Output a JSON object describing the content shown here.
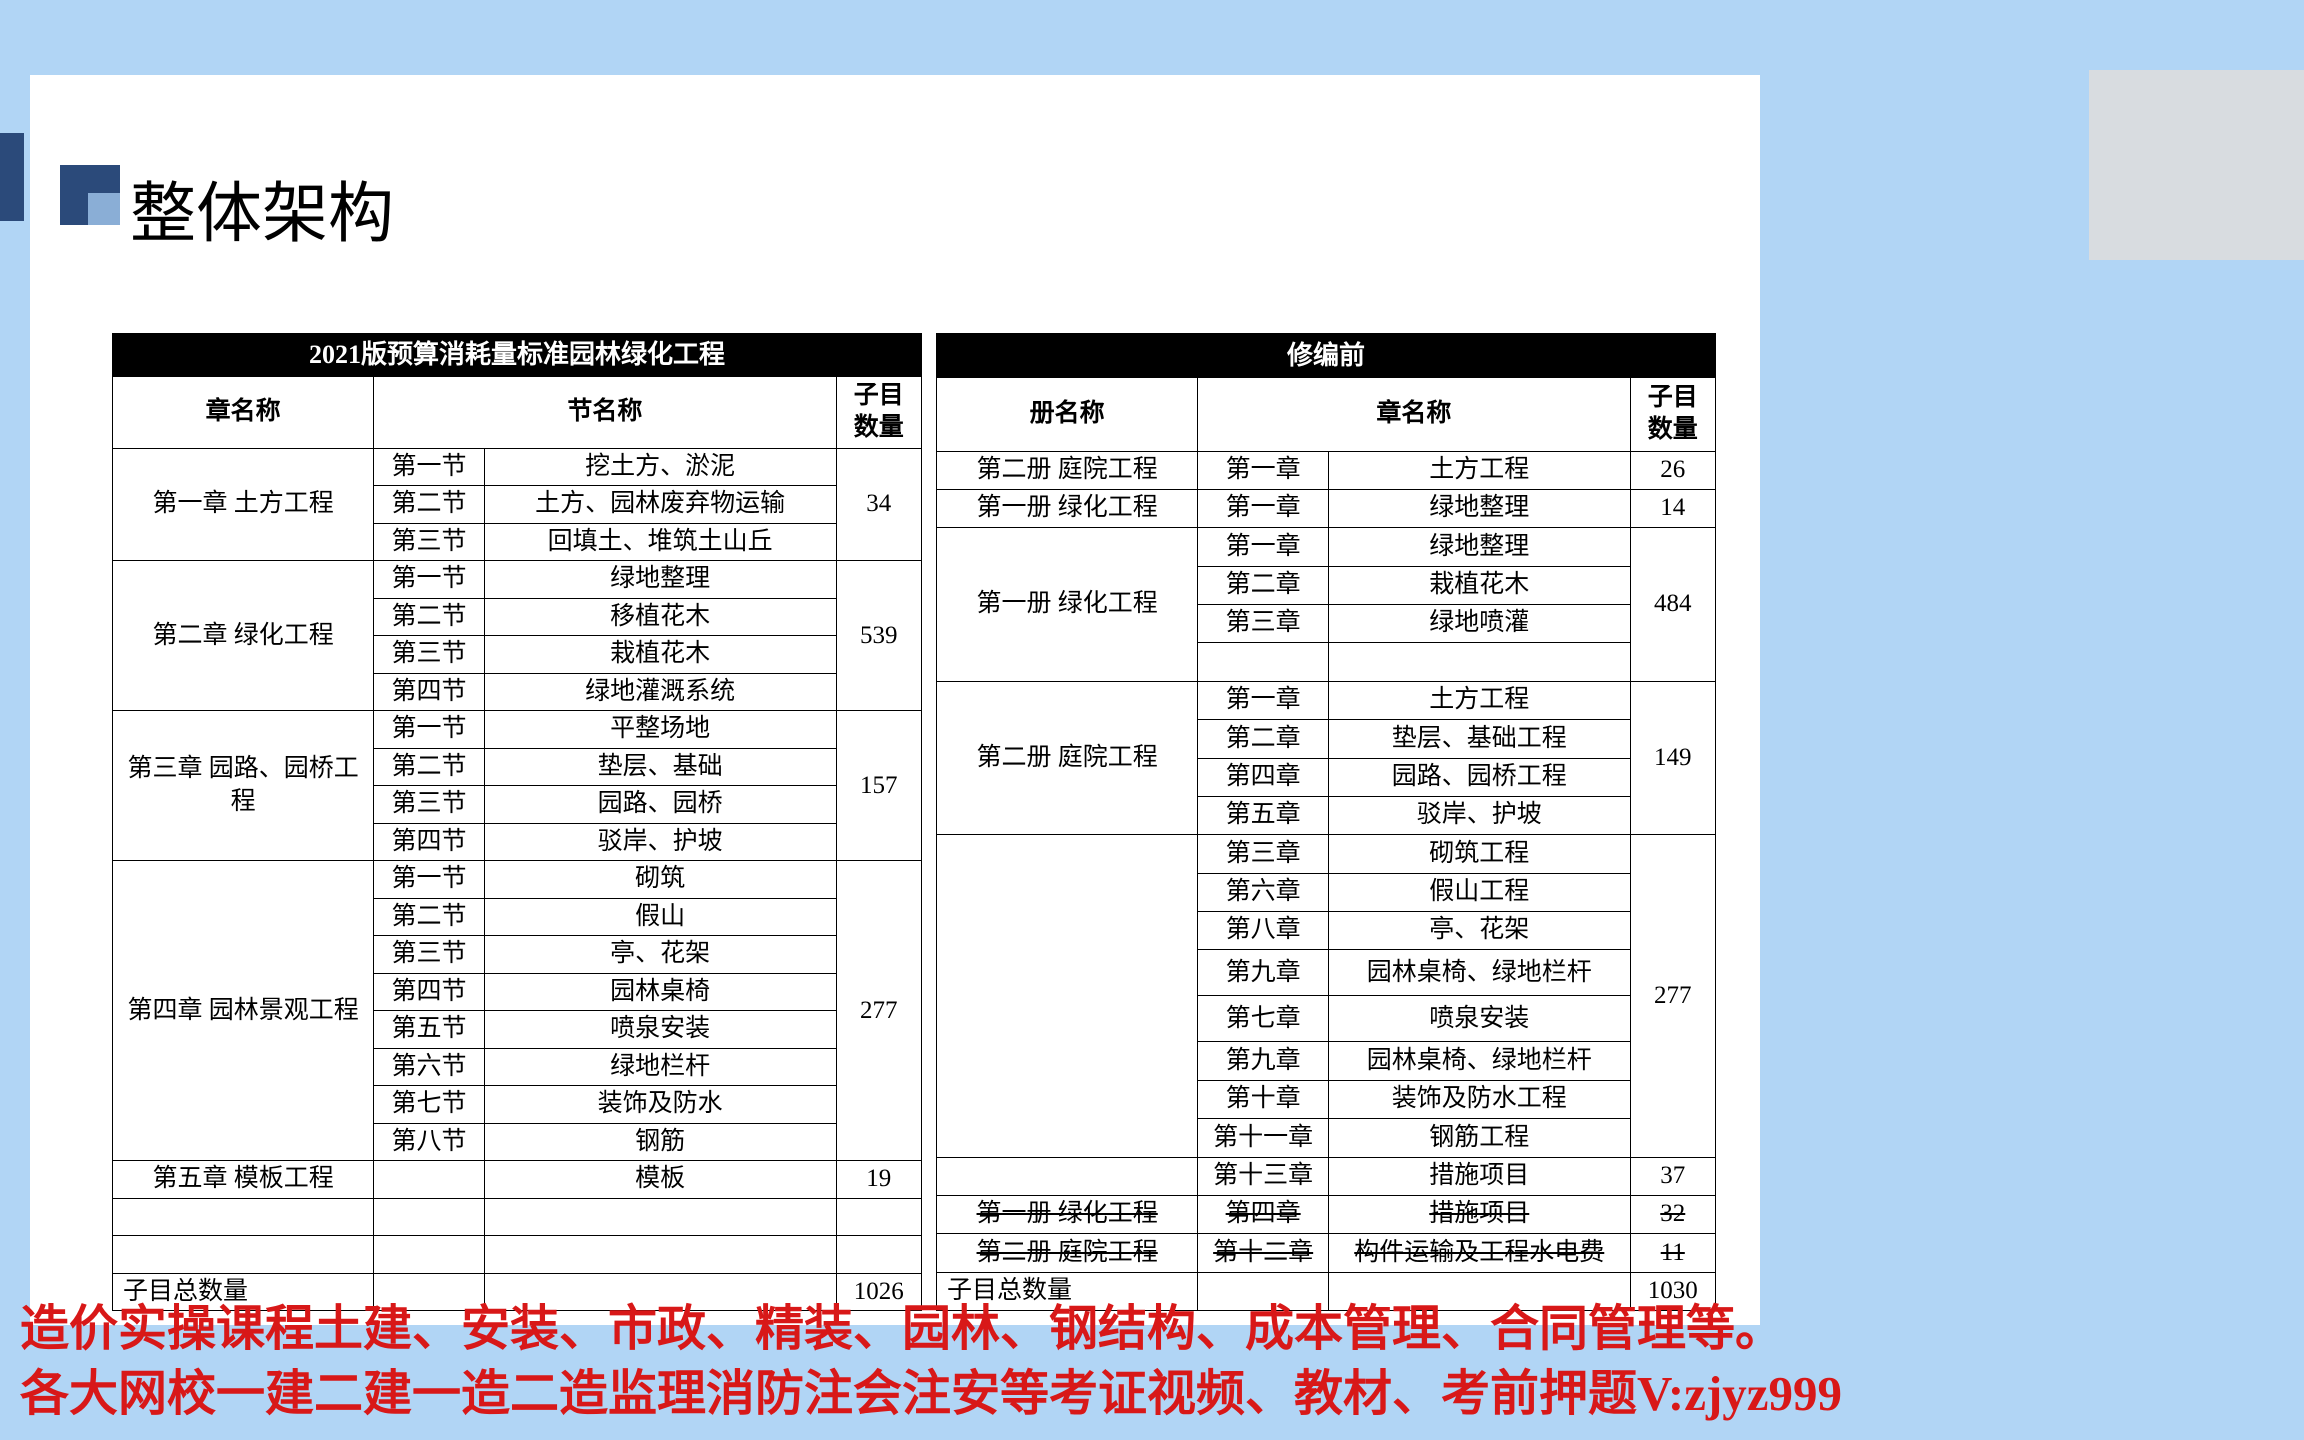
{
  "title": "整体架构",
  "left_table": {
    "header": "2021版预算消耗量标准园林绿化工程",
    "col_headers": [
      "章名称",
      "节名称",
      "子目数量"
    ],
    "groups": [
      {
        "chapter": "第一章 土方工程",
        "count": "34",
        "rows": [
          [
            "第一节",
            "挖土方、淤泥"
          ],
          [
            "第二节",
            "土方、园林废弃物运输"
          ],
          [
            "第三节",
            "回填土、堆筑土山丘"
          ]
        ]
      },
      {
        "chapter": "第二章 绿化工程",
        "count": "539",
        "rows": [
          [
            "第一节",
            "绿地整理"
          ],
          [
            "第二节",
            "移植花木"
          ],
          [
            "第三节",
            "栽植花木"
          ],
          [
            "第四节",
            "绿地灌溉系统"
          ]
        ]
      },
      {
        "chapter": "第三章 园路、园桥工程",
        "count": "157",
        "rows": [
          [
            "第一节",
            "平整场地"
          ],
          [
            "第二节",
            "垫层、基础"
          ],
          [
            "第三节",
            "园路、园桥"
          ],
          [
            "第四节",
            "驳岸、护坡"
          ]
        ]
      },
      {
        "chapter": "第四章 园林景观工程",
        "count": "277",
        "rows": [
          [
            "第一节",
            "砌筑"
          ],
          [
            "第二节",
            "假山"
          ],
          [
            "第三节",
            "亭、花架"
          ],
          [
            "第四节",
            "园林桌椅"
          ],
          [
            "第五节",
            "喷泉安装"
          ],
          [
            "第六节",
            "绿地栏杆"
          ],
          [
            "第七节",
            "装饰及防水"
          ],
          [
            "第八节",
            "钢筋"
          ]
        ]
      },
      {
        "chapter": "第五章 模板工程",
        "count": "19",
        "rows": [
          [
            "",
            "模板"
          ]
        ]
      }
    ],
    "blank_rows": 2,
    "total_label": "子目总数量",
    "total": "1026"
  },
  "right_table": {
    "header": "修编前",
    "col_headers": [
      "册名称",
      "章名称",
      "子目数量"
    ],
    "groups": [
      {
        "book": "第二册 庭院工程",
        "count": "26",
        "rows": [
          [
            "第一章",
            "土方工程"
          ]
        ]
      },
      {
        "book": "第一册 绿化工程",
        "count": "14",
        "rows": [
          [
            "第一章",
            "绿地整理"
          ]
        ]
      },
      {
        "book": "第一册 绿化工程",
        "count": "484",
        "rows": [
          [
            "第一章",
            "绿地整理"
          ],
          [
            "第二章",
            "栽植花木"
          ],
          [
            "第三章",
            "绿地喷灌"
          ]
        ],
        "blank_after": 1
      },
      {
        "book": "第二册 庭院工程",
        "count": "149",
        "rows": [
          [
            "第一章",
            "土方工程"
          ],
          [
            "第二章",
            "垫层、基础工程"
          ],
          [
            "第四章",
            "园路、园桥工程"
          ],
          [
            "第五章",
            "驳岸、护坡"
          ]
        ]
      },
      {
        "book": "",
        "count": "277",
        "rows": [
          [
            "第三章",
            "砌筑工程"
          ],
          [
            "第六章",
            "假山工程"
          ],
          [
            "第八章",
            "亭、花架"
          ],
          [
            "第九章",
            "园林桌椅、绿地栏杆"
          ],
          [
            "第七章",
            "喷泉安装"
          ],
          [
            "第九章",
            "园林桌椅、绿地栏杆"
          ],
          [
            "第十章",
            "装饰及防水工程"
          ],
          [
            "第十一章",
            "钢筋工程"
          ]
        ],
        "tall_after": [
          3,
          4
        ]
      },
      {
        "book": "",
        "count": "37",
        "rows": [
          [
            "第十三章",
            "措施项目"
          ]
        ]
      }
    ],
    "struck": [
      {
        "book": "第一册 绿化工程",
        "ch": "第四章",
        "name": "措施项目",
        "count": "32"
      },
      {
        "book": "第二册 庭院工程",
        "ch": "第十二章",
        "name": "构件运输及工程水电费",
        "count": "11"
      }
    ],
    "total_label": "子目总数量",
    "total": "1030"
  },
  "red_line1": "造价实操课程土建、安装、市政、精装、园林、钢结构、成本管理、合同管理等。",
  "red_line2": "各大网校一建二建一造二造监理消防注会注安等考证视频、教材、考前押题V:zjyz999"
}
